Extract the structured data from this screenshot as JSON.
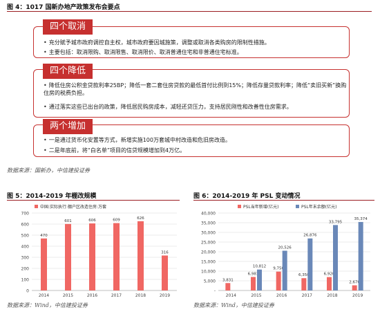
{
  "figure4": {
    "title": "图 4：1017 国新办地产政策发布会要点",
    "sections": [
      {
        "tab": "四个取消",
        "bullets": [
          "充分赋予城市政府调控自主权，城市政府要因城施策，调整或取消各类购房的限制性措施。",
          "主要包括：取消限购、取消限售、取消限价、取消普通住宅和非普通住宅标准。"
        ]
      },
      {
        "tab": "四个降低",
        "bullets": [
          "降低住房公积金贷款利率25BP；降低一套二套住房贷款的最低首付比例到15%；降低存量贷款利率；降低“卖旧买新”换购住房的税费负担。",
          "通过落实这些已出台的政策，降低居民购房成本，减轻还贷压力，支持居民刚性和改善性住房需求。"
        ]
      },
      {
        "tab": "两个增加",
        "bullets": [
          "一是通过货币化安置等方式，新增实施100万套城中村改造和危旧房改造。",
          "二是年底前，将“白名单”项目的信贷规模增加到4万亿。"
        ]
      }
    ],
    "source": "数据来源：国新办，中信建投证券"
  },
  "figure5": {
    "title": "图 5：2014-2019 年棚改规模",
    "source": "数据来源：Wind，中信建投证券"
  },
  "figure6": {
    "title": "图 6：2014-2019 年 PSL 变动情况",
    "source": "数据来源：Wind，中信建投证券"
  },
  "chart_data": [
    {
      "type": "bar",
      "categories": [
        "2014",
        "2015",
        "2016",
        "2017",
        "2018",
        "2019"
      ],
      "series": [
        {
          "name": "中国:实际执行:棚户区改造住房:万套",
          "values": [
            470,
            601,
            606,
            609,
            626,
            316
          ]
        }
      ],
      "ylim": [
        0,
        700
      ],
      "yticks": [
        "0",
        "100",
        "200",
        "300",
        "400",
        "500",
        "600",
        "700"
      ],
      "data_labels": [
        "470",
        "601",
        "606",
        "609",
        "626",
        "316"
      ],
      "grid": true,
      "legend": "top-left",
      "colors": [
        "#f06763"
      ]
    },
    {
      "type": "bar",
      "categories": [
        "2014",
        "2015",
        "2016",
        "2017",
        "2018",
        "2019"
      ],
      "series": [
        {
          "name": "PSL当年新增(亿元)",
          "values": [
            3831,
            6981,
            9750,
            6350,
            6920,
            2670
          ]
        },
        {
          "name": "PSL年末余额(亿元)",
          "values": [
            null,
            10812,
            20526,
            26876,
            33795,
            35374
          ]
        }
      ],
      "data_labels": [
        [
          "3,831",
          "6,981",
          "9,750",
          "6,350",
          "6,920",
          "2,670"
        ],
        [
          null,
          "10,812",
          "20,526",
          "26,876",
          "33,795",
          "35,374"
        ]
      ],
      "ylim": [
        0,
        40000
      ],
      "yticks": [
        "-",
        "5,000",
        "10,000",
        "15,000",
        "20,000",
        "25,000",
        "30,000",
        "35,000",
        "40,000"
      ],
      "grid": true,
      "legend": "top",
      "colors": [
        "#f06763",
        "#6a88b8"
      ]
    }
  ]
}
